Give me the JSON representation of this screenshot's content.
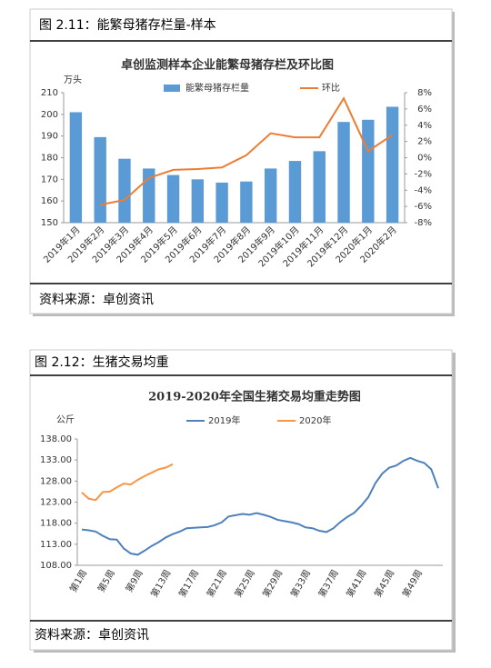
{
  "figures": [
    {
      "caption": "图 2.11：能繁母猪存栏量-样本",
      "source": "资料来源：卓创资讯"
    },
    {
      "caption": "图 2.12：生猪交易均重",
      "source": "资料来源：卓创资讯"
    }
  ],
  "chart_data": [
    {
      "type": "bar",
      "title": "卓创监测样本企业能繁母猪存栏及环比图",
      "y_unit": "万头",
      "categories": [
        "2019年1月",
        "2019年2月",
        "2019年3月",
        "2019年4月",
        "2019年5月",
        "2019年6月",
        "2019年7月",
        "2019年8月",
        "2019年9月",
        "2019年10月",
        "2019年11月",
        "2019年12月",
        "2020年1月",
        "2020年2月"
      ],
      "series": [
        {
          "name": "能繁母猪存栏量",
          "type": "bar",
          "color": "#5b9bd5",
          "values": [
            201,
            189.5,
            179.5,
            175,
            172,
            170,
            168.5,
            169,
            175,
            178.5,
            183,
            196.5,
            197.5,
            203.5
          ]
        },
        {
          "name": "环比",
          "type": "line",
          "axis": "y2",
          "color": "#ed7d31",
          "values": [
            null,
            -5.8,
            -5.2,
            -2.5,
            -1.5,
            -1.4,
            -1.2,
            0.3,
            3.0,
            2.5,
            2.5,
            7.3,
            0.8,
            2.8
          ]
        }
      ],
      "ylim": [
        150,
        210
      ],
      "yticks": [
        150,
        160,
        170,
        180,
        190,
        200,
        210
      ],
      "y2lim": [
        -8,
        8
      ],
      "y2ticks": [
        {
          "value": -8,
          "label": "-8%"
        },
        {
          "value": -6,
          "label": "-6%"
        },
        {
          "value": -4,
          "label": "-4%"
        },
        {
          "value": -2,
          "label": "-2%"
        },
        {
          "value": 0,
          "label": "0%"
        },
        {
          "value": 2,
          "label": "2%"
        },
        {
          "value": 4,
          "label": "4%"
        },
        {
          "value": 6,
          "label": "6%"
        },
        {
          "value": 8,
          "label": "8%"
        }
      ],
      "grid": false,
      "legend": "top"
    },
    {
      "type": "line",
      "title": "2019-2020年全国生猪交易均重走势图",
      "y_unit": "公斤",
      "categories": [
        "第1周",
        null,
        null,
        null,
        "第5周",
        null,
        null,
        null,
        "第9周",
        null,
        null,
        null,
        "第13周",
        null,
        null,
        null,
        "第17周",
        null,
        null,
        null,
        "第21周",
        null,
        null,
        null,
        "第25周",
        null,
        null,
        null,
        "第29周",
        null,
        null,
        null,
        "第33周",
        null,
        null,
        null,
        "第37周",
        null,
        null,
        null,
        "第41周",
        null,
        null,
        null,
        "第45周",
        null,
        null,
        null,
        "第49周",
        null,
        null,
        null
      ],
      "series": [
        {
          "name": "2019年",
          "color": "#4f81bd",
          "values": [
            116.5,
            116.3,
            116.0,
            115.0,
            114.2,
            114.1,
            112.0,
            110.8,
            110.5,
            111.5,
            112.6,
            113.5,
            114.6,
            115.4,
            116.0,
            116.8,
            116.9,
            117.0,
            117.1,
            117.5,
            118.2,
            119.6,
            119.9,
            120.2,
            120.0,
            120.4,
            120.0,
            119.5,
            118.8,
            118.5,
            118.2,
            117.8,
            117.0,
            116.8,
            116.2,
            115.9,
            116.8,
            118.3,
            119.5,
            120.5,
            122.2,
            124.2,
            127.5,
            129.8,
            131.2,
            131.7,
            132.8,
            133.5,
            132.8,
            132.3,
            130.8,
            126.3
          ]
        },
        {
          "name": "2020年",
          "color": "#f79646",
          "values": [
            125.3,
            123.8,
            123.5,
            125.4,
            125.5,
            126.5,
            127.4,
            127.2,
            128.3,
            129.2,
            130.0,
            130.8,
            131.2,
            132.0,
            null,
            null,
            null,
            null,
            null,
            null,
            null,
            null,
            null,
            null,
            null,
            null,
            null,
            null,
            null,
            null,
            null,
            null,
            null,
            null,
            null,
            null,
            null,
            null,
            null,
            null,
            null,
            null,
            null,
            null,
            null,
            null,
            null,
            null,
            null,
            null,
            null,
            null
          ]
        }
      ],
      "ylim": [
        108,
        138
      ],
      "yticks": [
        {
          "value": 108,
          "label": "108.00"
        },
        {
          "value": 113,
          "label": "113.00"
        },
        {
          "value": 118,
          "label": "118.00"
        },
        {
          "value": 123,
          "label": "123.00"
        },
        {
          "value": 128,
          "label": "128.00"
        },
        {
          "value": 133,
          "label": "133.00"
        },
        {
          "value": 138,
          "label": "138.00"
        }
      ],
      "grid": false,
      "legend": "top"
    }
  ]
}
